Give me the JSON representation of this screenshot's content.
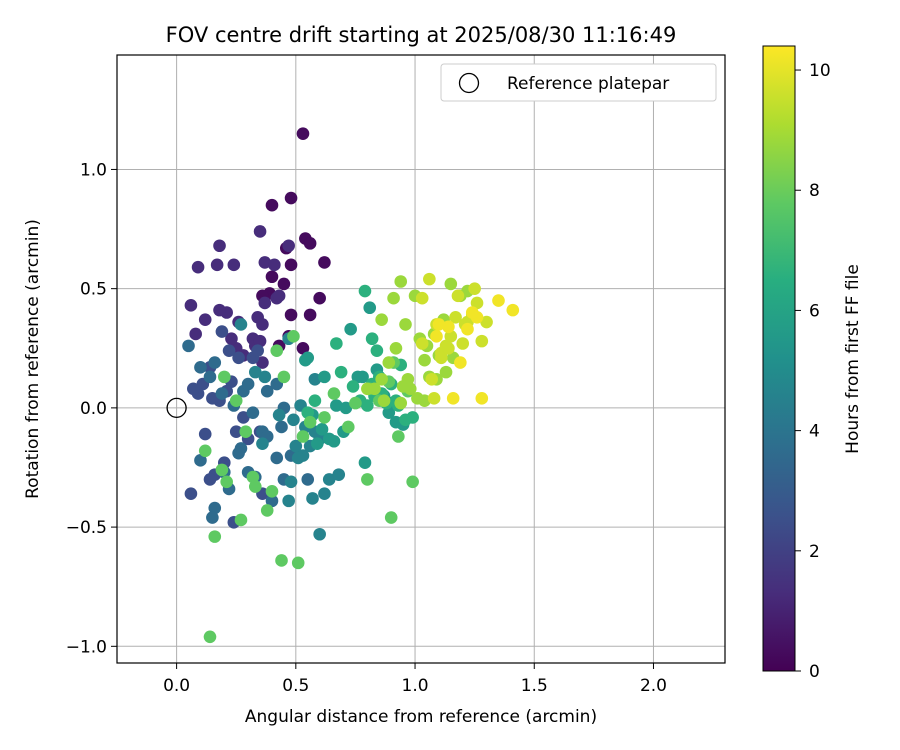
{
  "chart_data": {
    "type": "scatter",
    "title": "FOV centre drift starting at 2025/08/30 11:16:49",
    "xlabel": "Angular distance from reference (arcmin)",
    "ylabel": "Rotation from reference (arcmin)",
    "xlim": [
      -0.25,
      2.3
    ],
    "ylim": [
      -1.07,
      1.48
    ],
    "xticks": [
      0.0,
      0.5,
      1.0,
      1.5,
      2.0
    ],
    "xtick_labels": [
      "0.0",
      "0.5",
      "1.0",
      "1.5",
      "2.0"
    ],
    "yticks": [
      -1.0,
      -0.5,
      0.0,
      0.5,
      1.0
    ],
    "ytick_labels": [
      "−1.0",
      "−0.5",
      "0.0",
      "0.5",
      "1.0"
    ],
    "grid": true,
    "legend": {
      "position": "top-right",
      "entries": [
        "Reference platepar"
      ]
    },
    "reference_point": {
      "x": 0.0,
      "y": 0.0,
      "marker": "open-circle"
    },
    "colorbar": {
      "label": "Hours from first FF file",
      "min": 0,
      "max": 10.4,
      "ticks": [
        0,
        2,
        4,
        6,
        8,
        10
      ],
      "tick_labels": [
        "0",
        "2",
        "4",
        "6",
        "8",
        "10"
      ],
      "colormap": "viridis"
    },
    "series": [
      {
        "name": "hour_0_1",
        "hours": 0.3,
        "x": [
          0.53,
          0.48,
          0.4,
          0.54,
          0.56,
          0.62,
          0.46,
          0.48,
          0.45,
          0.4,
          0.48,
          0.56,
          0.6,
          0.53,
          0.39,
          0.36,
          0.47,
          0.43
        ],
        "y": [
          1.15,
          0.88,
          0.85,
          0.71,
          0.69,
          0.61,
          0.67,
          0.6,
          0.52,
          0.55,
          0.39,
          0.39,
          0.46,
          0.25,
          0.48,
          0.47,
          0.3,
          0.26
        ]
      },
      {
        "name": "hour_1_2",
        "hours": 1.3,
        "x": [
          0.18,
          0.09,
          0.17,
          0.24,
          0.35,
          0.37,
          0.41,
          0.47,
          0.42,
          0.37,
          0.34,
          0.43,
          0.32,
          0.36,
          0.25,
          0.33,
          0.21,
          0.06,
          0.12,
          0.18,
          0.08,
          0.35,
          0.23,
          0.28,
          0.26,
          0.36
        ],
        "y": [
          0.68,
          0.59,
          0.6,
          0.6,
          0.74,
          0.61,
          0.6,
          0.68,
          0.46,
          0.44,
          0.38,
          0.47,
          0.29,
          0.35,
          0.25,
          0.26,
          0.4,
          0.43,
          0.37,
          0.41,
          0.31,
          0.28,
          0.29,
          0.22,
          0.36,
          0.19
        ]
      },
      {
        "name": "hour_2_3",
        "hours": 2.5,
        "x": [
          0.19,
          0.22,
          0.26,
          0.14,
          0.23,
          0.11,
          0.32,
          0.34,
          0.21,
          0.18,
          0.15,
          0.28,
          0.09,
          0.12,
          0.25,
          0.3,
          0.06,
          0.36,
          0.16,
          0.14,
          0.2,
          0.24,
          0.35,
          0.07
        ],
        "y": [
          0.32,
          0.24,
          0.21,
          0.17,
          0.11,
          0.1,
          0.21,
          0.24,
          0.07,
          0.03,
          0.04,
          -0.04,
          0.06,
          -0.11,
          -0.1,
          -0.13,
          -0.36,
          -0.36,
          -0.28,
          -0.3,
          -0.23,
          -0.48,
          -0.1,
          0.08
        ]
      },
      {
        "name": "hour_3_4",
        "hours": 3.6,
        "x": [
          0.05,
          0.1,
          0.14,
          0.19,
          0.24,
          0.28,
          0.32,
          0.36,
          0.16,
          0.22,
          0.27,
          0.38,
          0.3,
          0.42,
          0.44,
          0.48,
          0.1,
          0.15,
          0.2,
          0.26,
          0.33,
          0.4,
          0.45,
          0.5,
          0.3,
          0.38,
          0.45,
          0.16,
          0.42,
          0.55
        ],
        "y": [
          0.26,
          0.17,
          0.13,
          0.06,
          0.01,
          0.07,
          -0.02,
          -0.1,
          -0.42,
          -0.34,
          -0.17,
          -0.12,
          -0.27,
          -0.21,
          -0.08,
          -0.2,
          -0.22,
          -0.46,
          -0.27,
          -0.19,
          -0.29,
          -0.39,
          -0.3,
          -0.2,
          0.1,
          0.07,
          0.0,
          0.19,
          0.1,
          -0.3
        ]
      },
      {
        "name": "hour_4_5",
        "hours": 4.6,
        "x": [
          0.27,
          0.33,
          0.37,
          0.43,
          0.47,
          0.52,
          0.58,
          0.54,
          0.5,
          0.6,
          0.47,
          0.36,
          0.53,
          0.62,
          0.57,
          0.48,
          0.64,
          0.58,
          0.68,
          0.51,
          0.56,
          0.49,
          0.6
        ],
        "y": [
          0.35,
          0.15,
          0.13,
          -0.03,
          0.29,
          0.01,
          0.12,
          -0.08,
          -0.16,
          -0.13,
          -0.39,
          -0.15,
          -0.2,
          -0.36,
          -0.38,
          -0.31,
          -0.3,
          -0.1,
          -0.28,
          -0.21,
          -0.16,
          -0.05,
          -0.53
        ]
      },
      {
        "name": "hour_5_6",
        "hours": 5.6,
        "x": [
          0.54,
          0.62,
          0.67,
          0.71,
          0.73,
          0.78,
          0.81,
          0.84,
          0.87,
          0.89,
          0.9,
          0.92,
          0.95,
          0.76,
          0.7,
          0.64,
          0.59,
          0.61,
          0.57,
          0.66,
          0.55,
          0.79
        ],
        "y": [
          0.2,
          0.13,
          0.01,
          0.0,
          0.33,
          0.13,
          0.42,
          0.16,
          0.05,
          -0.02,
          0.02,
          -0.06,
          -0.07,
          0.13,
          -0.1,
          -0.13,
          -0.15,
          -0.09,
          -0.03,
          -0.14,
          0.21,
          -0.23
        ]
      },
      {
        "name": "hour_6_7",
        "hours": 6.6,
        "x": [
          0.79,
          0.82,
          0.84,
          0.82,
          0.86,
          0.88,
          0.92,
          0.96,
          0.74,
          0.77,
          0.8,
          0.83,
          0.9,
          0.94,
          0.67,
          0.69,
          0.58,
          0.55,
          0.85,
          0.93,
          0.99
        ],
        "y": [
          0.49,
          0.29,
          0.24,
          0.1,
          0.06,
          0.02,
          0.03,
          -0.05,
          0.09,
          0.03,
          0.01,
          0.05,
          0.1,
          0.18,
          0.27,
          0.15,
          0.03,
          -0.02,
          0.13,
          0.01,
          -0.04
        ]
      },
      {
        "name": "hour_7_8",
        "hours": 7.8,
        "x": [
          0.49,
          0.42,
          0.45,
          0.4,
          0.38,
          0.32,
          0.33,
          0.27,
          0.21,
          0.19,
          0.16,
          0.14,
          0.12,
          0.25,
          0.29,
          0.2,
          0.53,
          0.56,
          0.62,
          0.66,
          0.72,
          0.75,
          0.8,
          0.85,
          0.91,
          0.93,
          0.81,
          0.9,
          0.97,
          0.99,
          0.89,
          0.44,
          0.51
        ],
        "y": [
          0.3,
          0.24,
          0.13,
          -0.35,
          -0.43,
          -0.29,
          -0.33,
          -0.47,
          -0.31,
          -0.26,
          -0.54,
          -0.96,
          -0.18,
          0.03,
          -0.1,
          0.13,
          -0.12,
          -0.06,
          -0.04,
          0.06,
          -0.08,
          0.02,
          -0.3,
          0.03,
          0.19,
          -0.12,
          0.08,
          -0.46,
          0.07,
          -0.31,
          0.11,
          -0.64,
          -0.65
        ]
      },
      {
        "name": "hour_8_9",
        "hours": 8.8,
        "x": [
          0.86,
          0.91,
          0.94,
          0.96,
          1.0,
          1.02,
          1.04,
          1.08,
          1.1,
          1.13,
          0.92,
          0.89,
          0.97,
          1.01,
          1.05,
          1.15,
          1.12,
          1.09,
          0.95,
          0.94,
          0.86,
          1.06,
          1.19,
          1.22,
          1.16,
          0.83,
          0.87,
          0.98,
          1.04,
          0.8
        ],
        "y": [
          0.37,
          0.46,
          0.53,
          0.35,
          0.47,
          0.29,
          0.2,
          0.31,
          0.22,
          0.15,
          0.25,
          0.19,
          0.12,
          0.04,
          0.26,
          0.52,
          0.37,
          0.12,
          0.09,
          0.02,
          0.12,
          0.13,
          0.47,
          0.49,
          0.21,
          0.08,
          0.03,
          0.08,
          0.03,
          0.08
        ]
      },
      {
        "name": "hour_9_10",
        "hours": 9.6,
        "x": [
          1.03,
          1.06,
          1.09,
          1.11,
          1.13,
          1.17,
          1.21,
          1.24,
          1.26,
          1.28,
          1.3,
          1.2,
          1.15,
          1.11,
          1.25,
          1.18,
          1.14,
          1.03,
          1.08,
          1.07,
          1.22
        ],
        "y": [
          0.46,
          0.54,
          0.35,
          0.23,
          0.26,
          0.38,
          0.35,
          0.39,
          0.44,
          0.28,
          0.36,
          0.27,
          0.3,
          0.21,
          0.5,
          0.47,
          0.25,
          0.27,
          0.04,
          0.12,
          0.36
        ]
      },
      {
        "name": "hour_10",
        "hours": 10.2,
        "x": [
          1.35,
          1.41,
          1.28,
          1.26,
          1.22,
          1.19,
          1.16,
          1.14,
          1.1,
          1.09,
          1.24
        ],
        "y": [
          0.45,
          0.41,
          0.04,
          0.38,
          0.33,
          0.19,
          0.04,
          0.34,
          0.35,
          0.3,
          0.4
        ]
      }
    ]
  }
}
